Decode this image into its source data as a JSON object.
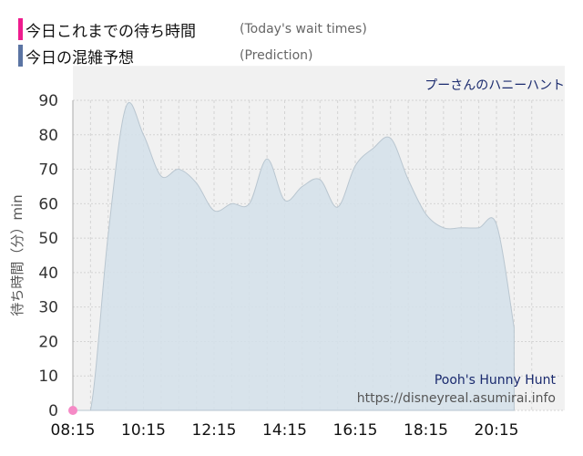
{
  "legend": [
    {
      "label_ja": "今日これまでの待ち時間",
      "label_en": "(Today's wait times)",
      "color": "#ee1c8e"
    },
    {
      "label_ja": "今日の混雑予想",
      "label_en": "(Prediction)",
      "color": "#5b74a3"
    }
  ],
  "chart_data": {
    "type": "area",
    "title": "プーさんのハニーハント",
    "ylabel": "待ち時間（分）min",
    "xlabel": "",
    "ylim": [
      0,
      90
    ],
    "yticks": [
      0,
      10,
      20,
      30,
      40,
      50,
      60,
      70,
      80,
      90
    ],
    "xtick_labels": [
      "08:15",
      "10:15",
      "12:15",
      "14:15",
      "16:15",
      "18:15",
      "20:15"
    ],
    "grid": true,
    "watermark": {
      "name": "Pooh's Hunny Hunt",
      "url": "https://disneyreal.asumirai.info"
    },
    "series": [
      {
        "name": "今日の混雑予想",
        "color": "#5b74a3",
        "x": [
          "08:15",
          "08:45",
          "09:15",
          "09:45",
          "10:15",
          "10:45",
          "11:15",
          "11:45",
          "12:15",
          "12:45",
          "13:15",
          "13:45",
          "14:15",
          "14:45",
          "15:15",
          "15:45",
          "16:15",
          "16:45",
          "17:15",
          "17:45",
          "18:15",
          "18:45",
          "19:15",
          "19:45",
          "20:15",
          "20:45"
        ],
        "values": [
          0,
          0,
          51,
          88,
          80,
          68,
          70,
          66,
          58,
          60,
          60,
          73,
          61,
          65,
          67,
          59,
          71,
          76,
          79,
          67,
          57,
          53,
          53,
          53,
          54,
          24
        ]
      },
      {
        "name": "今日これまでの待ち時間",
        "color": "#ee1c8e",
        "x": [
          "08:15"
        ],
        "values": [
          0
        ]
      }
    ]
  }
}
